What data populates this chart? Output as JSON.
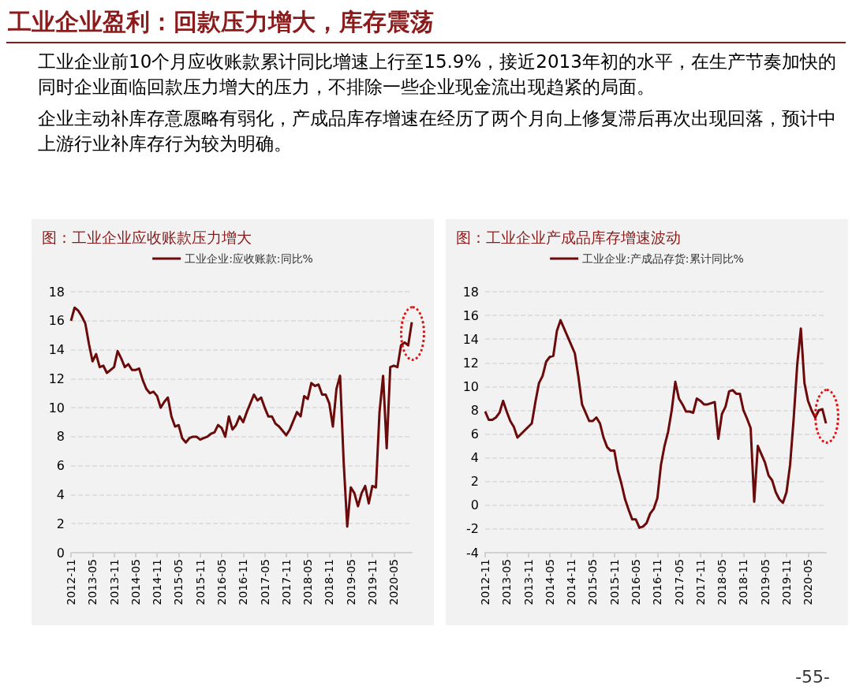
{
  "chart_data": [
    {
      "type": "other",
      "title": "工业企业盈利：回款压力增大，库存震荡",
      "annotations": [
        "工业企业前10个月应收账款累计同比增速上行至15.9%，接近2013年初的水平，在生产节奏加快的同时企业面临回款压力增大的压力，不排除一些企业现金流出现趋紧的局面。",
        "企业主动补库存意愿略有弱化，产成品库存增速在经历了两个月向上修复滞后再次出现回落，预计中上游行业补库存行为较为明确。",
        "-55-"
      ]
    },
    {
      "type": "line",
      "title": "图：工业企业应收账款压力增大",
      "categories": [
        "2012-11",
        null,
        null,
        null,
        null,
        null,
        "2013-05",
        null,
        null,
        null,
        null,
        null,
        "2013-11",
        null,
        null,
        null,
        null,
        null,
        "2014-05",
        null,
        null,
        null,
        null,
        null,
        "2014-11",
        null,
        null,
        null,
        null,
        null,
        "2015-05",
        null,
        null,
        null,
        null,
        null,
        "2015-11",
        null,
        null,
        null,
        null,
        null,
        "2016-05",
        null,
        null,
        null,
        null,
        null,
        "2016-11",
        null,
        null,
        null,
        null,
        null,
        "2017-05",
        null,
        null,
        null,
        null,
        null,
        "2017-11",
        null,
        null,
        null,
        null,
        null,
        "2018-05",
        null,
        null,
        null,
        null,
        null,
        "2018-11",
        null,
        null,
        null,
        null,
        null,
        "2019-05",
        null,
        null,
        null,
        null,
        null,
        "2019-11",
        null,
        null,
        null,
        null,
        null,
        "2020-05",
        null,
        null,
        null,
        null,
        null
      ],
      "series": [
        {
          "name": "工业企业:应收账款:同比%",
          "color": "#6b0a0a",
          "values": [
            16.0,
            16.9,
            16.7,
            16.3,
            15.8,
            14.4,
            13.2,
            13.7,
            12.8,
            12.9,
            12.4,
            12.6,
            12.8,
            13.9,
            13.4,
            12.8,
            13.0,
            12.6,
            12.6,
            12.7,
            11.9,
            11.3,
            11.0,
            11.1,
            10.8,
            10.0,
            10.4,
            10.7,
            9.4,
            8.7,
            8.8,
            7.9,
            7.6,
            7.9,
            8.0,
            8.0,
            7.8,
            7.9,
            8.0,
            8.2,
            8.3,
            8.8,
            8.6,
            8.0,
            9.4,
            8.5,
            8.8,
            9.4,
            9.0,
            9.7,
            10.3,
            10.9,
            10.5,
            10.7,
            10.0,
            9.4,
            9.4,
            8.9,
            8.7,
            8.4,
            8.1,
            8.5,
            9.1,
            9.7,
            9.4,
            10.8,
            10.6,
            11.7,
            11.5,
            11.6,
            10.9,
            10.9,
            10.3,
            8.7,
            11.3,
            12.2,
            6.3,
            1.8,
            4.5,
            4.1,
            3.2,
            4.1,
            4.6,
            3.4,
            4.6,
            4.5,
            9.7,
            12.2,
            7.2,
            12.8,
            12.9,
            12.8,
            14.3,
            14.5,
            14.3,
            15.9
          ]
        }
      ],
      "ylim": [
        0,
        18
      ],
      "yticks": [
        0,
        2,
        4,
        6,
        8,
        10,
        12,
        14,
        16,
        18
      ],
      "grid": "y",
      "legend": "top",
      "marker": "none",
      "line_style": "solid"
    },
    {
      "type": "line",
      "title": "图：工业企业产成品库存增速波动",
      "categories": [
        "2012-11",
        null,
        null,
        null,
        null,
        null,
        "2013-05",
        null,
        null,
        null,
        null,
        null,
        "2013-11",
        null,
        null,
        null,
        null,
        null,
        "2014-05",
        null,
        null,
        null,
        null,
        null,
        "2014-11",
        null,
        null,
        null,
        null,
        null,
        "2015-05",
        null,
        null,
        null,
        null,
        null,
        "2015-11",
        null,
        null,
        null,
        null,
        null,
        "2016-05",
        null,
        null,
        null,
        null,
        null,
        "2016-11",
        null,
        null,
        null,
        null,
        null,
        "2017-05",
        null,
        null,
        null,
        null,
        null,
        "2017-11",
        null,
        null,
        null,
        null,
        null,
        "2018-05",
        null,
        null,
        null,
        null,
        null,
        "2018-11",
        null,
        null,
        null,
        null,
        null,
        "2019-05",
        null,
        null,
        null,
        null,
        null,
        "2019-11",
        null,
        null,
        null,
        null,
        null,
        "2020-05",
        null,
        null,
        null,
        null,
        null
      ],
      "series": [
        {
          "name": "工业企业:产成品存货:累计同比%",
          "color": "#6b0a0a",
          "values": [
            7.9,
            7.2,
            7.2,
            7.4,
            7.8,
            8.8,
            7.9,
            7.1,
            6.6,
            5.7,
            6.0,
            6.3,
            6.6,
            6.9,
            8.7,
            10.3,
            10.9,
            12.1,
            12.5,
            12.6,
            14.7,
            15.6,
            14.9,
            14.2,
            13.5,
            12.8,
            10.8,
            8.5,
            7.8,
            7.1,
            7.1,
            7.4,
            6.9,
            5.7,
            4.9,
            4.6,
            4.6,
            2.9,
            1.8,
            0.5,
            -0.4,
            -1.2,
            -1.2,
            -1.9,
            -1.8,
            -1.5,
            -0.7,
            -0.3,
            0.6,
            3.4,
            5.0,
            6.2,
            8.0,
            10.4,
            9.0,
            8.5,
            7.9,
            7.9,
            7.8,
            9.0,
            8.8,
            8.5,
            8.5,
            8.6,
            8.7,
            5.6,
            7.7,
            8.3,
            9.6,
            9.7,
            9.4,
            9.4,
            8.0,
            7.3,
            6.5,
            0.3,
            5.0,
            4.3,
            3.6,
            2.5,
            2.1,
            1.1,
            0.5,
            0.2,
            1.1,
            3.4,
            7.3,
            11.9,
            14.9,
            10.3,
            8.8,
            8.0,
            7.4,
            8.0,
            8.1,
            6.9
          ]
        }
      ],
      "ylim": [
        -4,
        18
      ],
      "yticks": [
        -4,
        -2,
        0,
        2,
        4,
        6,
        8,
        10,
        12,
        14,
        16,
        18
      ],
      "grid": "y",
      "legend": "top",
      "marker": "none",
      "line_style": "solid"
    }
  ]
}
